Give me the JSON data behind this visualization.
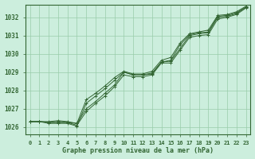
{
  "bg_color": "#cceedd",
  "grid_color": "#99ccaa",
  "line_color": "#336633",
  "xlabel": "Graphe pression niveau de la mer (hPa)",
  "xlim": [
    -0.5,
    23.5
  ],
  "ylim": [
    1025.6,
    1032.7
  ],
  "yticks": [
    1026,
    1027,
    1028,
    1029,
    1030,
    1031,
    1032
  ],
  "xticks": [
    0,
    1,
    2,
    3,
    4,
    5,
    6,
    7,
    8,
    9,
    10,
    11,
    12,
    13,
    14,
    15,
    16,
    17,
    18,
    19,
    20,
    21,
    22,
    23
  ],
  "lines": [
    {
      "x": [
        0,
        1,
        2,
        3,
        4,
        5,
        6,
        7,
        8,
        9,
        10,
        11,
        12,
        13,
        14,
        15,
        16,
        17,
        18,
        19,
        20,
        21,
        22,
        23
      ],
      "y": [
        1026.3,
        1026.3,
        1026.25,
        1026.3,
        1026.25,
        1026.2,
        1027.0,
        1027.4,
        1027.85,
        1028.3,
        1029.0,
        1028.85,
        1028.85,
        1028.9,
        1029.55,
        1029.6,
        1030.3,
        1031.0,
        1031.1,
        1031.15,
        1032.0,
        1032.05,
        1032.2,
        1032.55
      ]
    },
    {
      "x": [
        0,
        1,
        2,
        3,
        4,
        5,
        6,
        7,
        8,
        9,
        10,
        11,
        12,
        13,
        14,
        15,
        16,
        17,
        18,
        19,
        20,
        21,
        22,
        23
      ],
      "y": [
        1026.3,
        1026.3,
        1026.2,
        1026.2,
        1026.2,
        1026.05,
        1027.3,
        1027.7,
        1028.1,
        1028.55,
        1029.0,
        1028.85,
        1028.85,
        1028.95,
        1029.55,
        1029.65,
        1030.5,
        1031.05,
        1031.15,
        1031.2,
        1032.05,
        1032.1,
        1032.25,
        1032.55
      ]
    },
    {
      "x": [
        0,
        1,
        2,
        3,
        4,
        5,
        6,
        7,
        8,
        9,
        10,
        11,
        12,
        13,
        14,
        15,
        16,
        17,
        18,
        19,
        20,
        21,
        22,
        23
      ],
      "y": [
        1026.3,
        1026.3,
        1026.3,
        1026.35,
        1026.3,
        1026.2,
        1027.5,
        1027.85,
        1028.25,
        1028.7,
        1029.05,
        1028.9,
        1028.9,
        1029.05,
        1029.65,
        1029.8,
        1030.6,
        1031.1,
        1031.2,
        1031.3,
        1032.1,
        1032.15,
        1032.3,
        1032.6
      ]
    },
    {
      "x": [
        0,
        1,
        2,
        3,
        4,
        5,
        6,
        7,
        8,
        9,
        10,
        11,
        12,
        13,
        14,
        15,
        16,
        17,
        18,
        19,
        20,
        21,
        22,
        23
      ],
      "y": [
        1026.3,
        1026.3,
        1026.25,
        1026.25,
        1026.25,
        1026.1,
        1026.85,
        1027.3,
        1027.7,
        1028.2,
        1028.85,
        1028.75,
        1028.75,
        1028.85,
        1029.5,
        1029.5,
        1030.2,
        1030.9,
        1031.0,
        1031.05,
        1031.9,
        1032.0,
        1032.15,
        1032.5
      ]
    }
  ]
}
